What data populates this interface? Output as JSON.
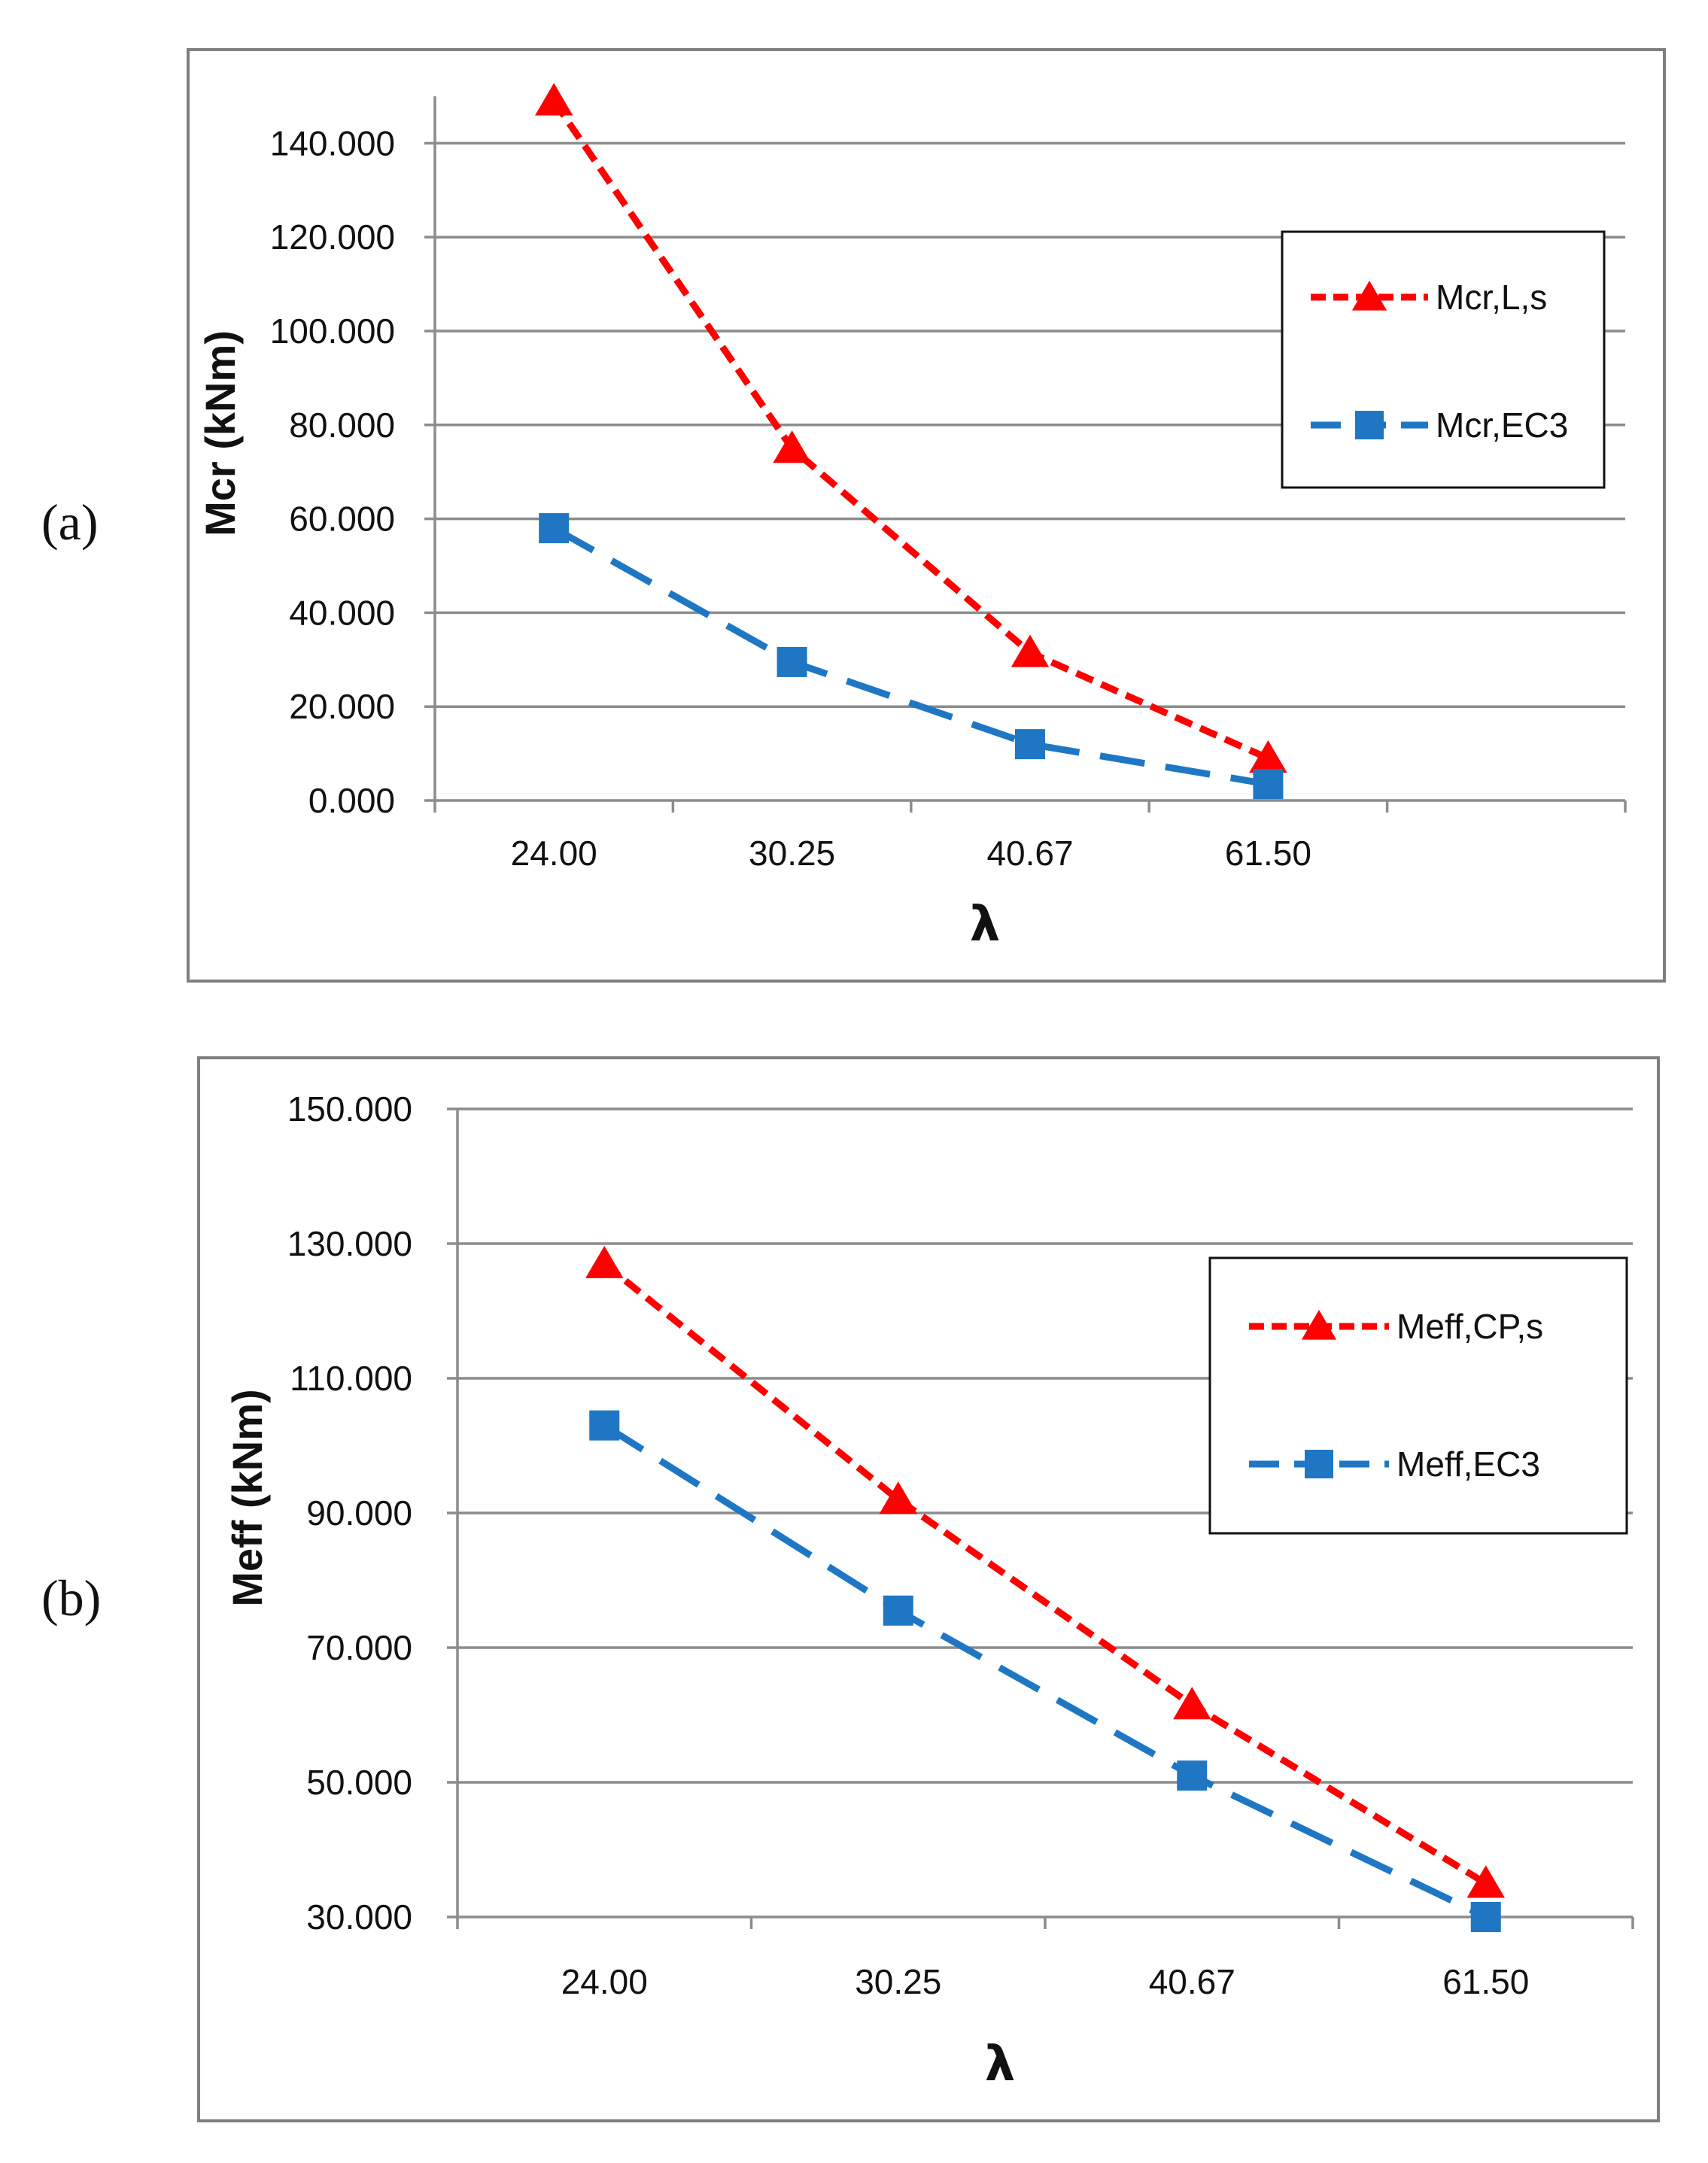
{
  "colors": {
    "red": "#ff0000",
    "blue": "#1f77c4"
  },
  "panels": [
    {
      "label": "(a)"
    },
    {
      "label": "(b)"
    }
  ],
  "chart_data": [
    {
      "type": "line",
      "panel": "(a)",
      "categories": [
        "24.00",
        "30.25",
        "40.67",
        "61.50"
      ],
      "xlabel": "λ",
      "ylabel": "Mcr  (kNm)",
      "ylim": [
        0,
        150
      ],
      "yticks": [
        0,
        20,
        40,
        60,
        80,
        100,
        120,
        140
      ],
      "ytick_labels": [
        "0.000",
        "20.000",
        "40.000",
        "60.000",
        "80.000",
        "100.000",
        "120.000",
        "140.000"
      ],
      "grid": true,
      "legend_position": "right",
      "series": [
        {
          "name": "Mcr,L,s",
          "marker": "triangle",
          "style": "short-dash",
          "color": "#ff0000",
          "values": [
            149,
            75,
            31.5,
            9
          ]
        },
        {
          "name": "Mcr,EC3",
          "marker": "square",
          "style": "long-dash",
          "color": "#1f77c4",
          "values": [
            58,
            29.5,
            12,
            3.5
          ]
        }
      ]
    },
    {
      "type": "line",
      "panel": "(b)",
      "categories": [
        "24.00",
        "30.25",
        "40.67",
        "61.50"
      ],
      "xlabel": "λ",
      "ylabel": "Meff  (kNm)",
      "ylim": [
        30,
        150
      ],
      "yticks": [
        30,
        50,
        70,
        90,
        110,
        130,
        150
      ],
      "ytick_labels": [
        "30.000",
        "50.000",
        "70.000",
        "90.000",
        "110.000",
        "130.000",
        "150.000"
      ],
      "grid": true,
      "legend_position": "right",
      "series": [
        {
          "name": "Meff,CP,s",
          "marker": "triangle",
          "style": "short-dash",
          "color": "#ff0000",
          "values": [
            127,
            92,
            61.5,
            35
          ]
        },
        {
          "name": "Meff,EC3",
          "marker": "square",
          "style": "long-dash",
          "color": "#1f77c4",
          "values": [
            103,
            75.5,
            51,
            30
          ]
        }
      ]
    }
  ]
}
